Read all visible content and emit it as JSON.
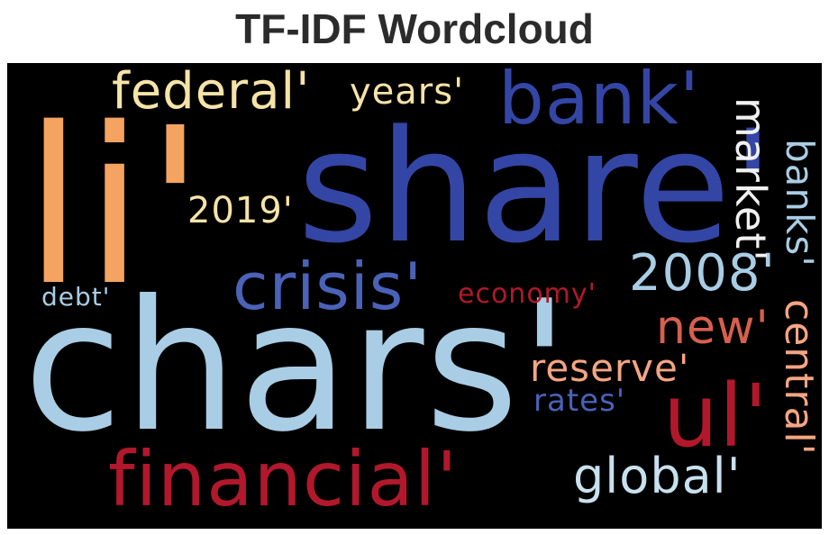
{
  "title": "TF-IDF Wordcloud",
  "colors": {
    "background": "#000000",
    "orange": "#f4a460",
    "cream": "#f6e3a7",
    "dark_blue": "#3446a5",
    "mid_blue": "#4a62b8",
    "light_blue": "#a9cde4",
    "pale_blue": "#c9e0ee",
    "red": "#b2182b",
    "light_red": "#d6604d",
    "peach": "#f4a582"
  },
  "words": {
    "share": "share'",
    "chars": "chars'",
    "li": "li'",
    "financial": "financial'",
    "bank": "bank'",
    "federal": "federal'",
    "years": "years'",
    "crisis": "crisis'",
    "y2019": "2019'",
    "y2008": "2008'",
    "market": "market'",
    "banks": "banks'",
    "central": "central'",
    "ul": "ul'",
    "global": "global'",
    "new": "new'",
    "reserve": "reserve'",
    "rates": "rates'",
    "economy": "economy'",
    "debt": "debt'"
  }
}
